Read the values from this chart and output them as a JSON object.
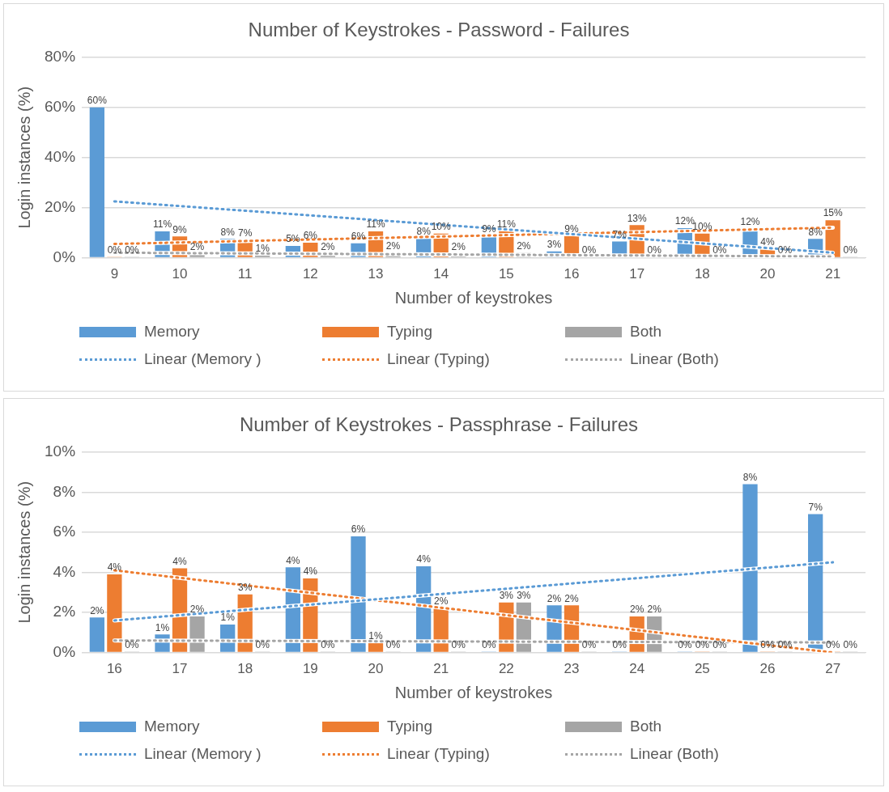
{
  "chart_data": [
    {
      "type": "bar",
      "title": "Number of Keystrokes - Password - Failures",
      "xlabel": "Number of keystrokes",
      "ylabel": "Login instances (%)",
      "categories": [
        "9",
        "10",
        "11",
        "12",
        "13",
        "14",
        "15",
        "16",
        "17",
        "18",
        "20",
        "21"
      ],
      "ylim": [
        0,
        80
      ],
      "yticks": [
        {
          "value": 0,
          "label": "0%"
        },
        {
          "value": 20,
          "label": "20%"
        },
        {
          "value": 40,
          "label": "40%"
        },
        {
          "value": 60,
          "label": "60%"
        },
        {
          "value": 80,
          "label": "80%"
        }
      ],
      "grid": "y",
      "legend": "bottom",
      "marker": "none",
      "series": [
        {
          "name": "Memory",
          "color": "#5b9bd5",
          "values": [
            60,
            10.5,
            7.5,
            4.7,
            5.8,
            7.6,
            8.8,
            2.5,
            6.5,
            11.8,
            11.5,
            7.5
          ],
          "value_labels": [
            "60%",
            "11%",
            "8%",
            "5%",
            "6%",
            "8%",
            "9%",
            "3%",
            "7%",
            "12%",
            "12%",
            "8%"
          ]
        },
        {
          "name": "Typing",
          "color": "#ed7d31",
          "values": [
            0,
            8.5,
            7.1,
            6,
            10.5,
            9.6,
            10.6,
            8.6,
            13,
            9.6,
            3.5,
            15
          ],
          "value_labels": [
            "0%",
            "9%",
            "7%",
            "6%",
            "11%",
            "10%",
            "11%",
            "9%",
            "13%",
            "10%",
            "4%",
            "15%"
          ]
        },
        {
          "name": "Both",
          "color": "#a5a5a5",
          "values": [
            0,
            1.5,
            0.8,
            1.5,
            1.8,
            1.5,
            1.9,
            0,
            0,
            0,
            0,
            0
          ],
          "value_labels": [
            "0%",
            "2%",
            "1%",
            "2%",
            "2%",
            "2%",
            "2%",
            "0%",
            "0%",
            "0%",
            "0%",
            "0%"
          ]
        },
        {
          "name": "Linear (Memory )",
          "type": "line",
          "line_style": "dotted",
          "color": "#5b9bd5",
          "values": [
            22.5,
            null,
            null,
            null,
            null,
            null,
            null,
            null,
            null,
            null,
            null,
            2
          ]
        },
        {
          "name": "Linear (Typing)",
          "type": "line",
          "line_style": "dotted",
          "color": "#ed7d31",
          "values": [
            5.5,
            null,
            null,
            null,
            null,
            null,
            null,
            null,
            null,
            null,
            null,
            12
          ]
        },
        {
          "name": "Linear (Both)",
          "type": "line",
          "line_style": "dotted",
          "color": "#a5a5a5",
          "values": [
            2,
            null,
            null,
            null,
            null,
            null,
            null,
            null,
            null,
            null,
            null,
            0.5
          ]
        }
      ]
    },
    {
      "type": "bar",
      "title": "Number of Keystrokes - Passphrase - Failures",
      "xlabel": "Number of keystrokes",
      "ylabel": "Login instances (%)",
      "categories": [
        "16",
        "17",
        "18",
        "19",
        "20",
        "21",
        "22",
        "23",
        "24",
        "25",
        "26",
        "27"
      ],
      "ylim": [
        0,
        10
      ],
      "yticks": [
        {
          "value": 0,
          "label": "0%"
        },
        {
          "value": 2,
          "label": "2%"
        },
        {
          "value": 4,
          "label": "4%"
        },
        {
          "value": 6,
          "label": "6%"
        },
        {
          "value": 8,
          "label": "8%"
        },
        {
          "value": 10,
          "label": "10%"
        }
      ],
      "grid": "y",
      "legend": "bottom",
      "marker": "none",
      "series": [
        {
          "name": "Memory",
          "color": "#5b9bd5",
          "values": [
            1.75,
            0.9,
            1.4,
            4.25,
            5.8,
            4.3,
            0,
            2.35,
            0,
            0,
            8.4,
            6.9
          ],
          "value_labels": [
            "2%",
            "1%",
            "1%",
            "4%",
            "6%",
            "4%",
            "0%",
            "2%",
            "0%",
            "0%",
            "8%",
            "7%"
          ]
        },
        {
          "name": "Typing",
          "color": "#ed7d31",
          "values": [
            3.9,
            4.2,
            2.9,
            3.7,
            0.5,
            2.2,
            2.5,
            2.35,
            1.8,
            0,
            0,
            0
          ],
          "value_labels": [
            "4%",
            "4%",
            "3%",
            "4%",
            "1%",
            "2%",
            "3%",
            "2%",
            "2%",
            "0%",
            "0%",
            "0%"
          ]
        },
        {
          "name": "Both",
          "color": "#a5a5a5",
          "values": [
            0,
            1.8,
            0,
            0,
            0,
            0,
            2.5,
            0,
            1.8,
            0,
            0,
            0
          ],
          "value_labels": [
            "0%",
            "2%",
            "0%",
            "0%",
            "0%",
            "0%",
            "3%",
            "0%",
            "2%",
            "0%",
            "0%",
            "0%"
          ]
        },
        {
          "name": "Linear (Memory )",
          "type": "line",
          "line_style": "dotted",
          "color": "#5b9bd5",
          "values": [
            1.6,
            null,
            null,
            null,
            null,
            null,
            null,
            null,
            null,
            null,
            null,
            4.5
          ]
        },
        {
          "name": "Linear (Typing)",
          "type": "line",
          "line_style": "dotted",
          "color": "#ed7d31",
          "values": [
            4.1,
            null,
            null,
            null,
            null,
            null,
            null,
            null,
            null,
            null,
            null,
            0
          ]
        },
        {
          "name": "Linear (Both)",
          "type": "line",
          "line_style": "dotted",
          "color": "#a5a5a5",
          "values": [
            0.6,
            null,
            null,
            null,
            null,
            null,
            null,
            null,
            null,
            null,
            null,
            0.5
          ]
        }
      ]
    }
  ]
}
